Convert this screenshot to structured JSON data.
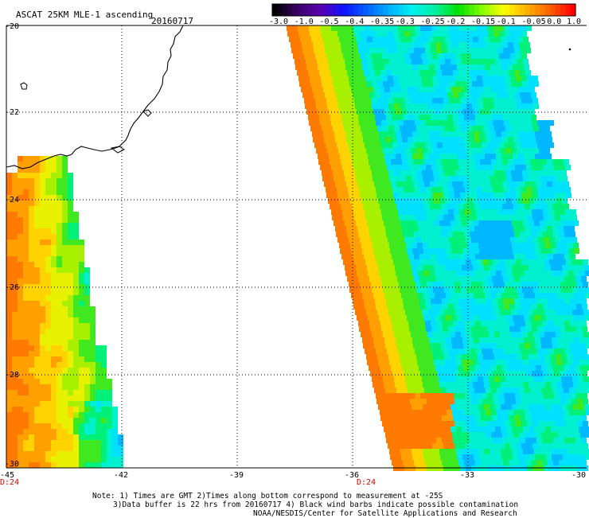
{
  "header": {
    "title": "ASCAT 25KM MLE-1 ascending",
    "date": "20160717"
  },
  "colorbar": {
    "labels": [
      "-3.0",
      "-1.0",
      "-0.5",
      "-0.4",
      "-0.35",
      "-0.3",
      "-0.25",
      "-0.2",
      "-0.15",
      "-0.1",
      "-0.05",
      "0.0",
      "1.0"
    ],
    "colors": [
      "#000000",
      "#3a0066",
      "#5a00b0",
      "#1010ff",
      "#0060ff",
      "#00b0ff",
      "#00f0f0",
      "#00f0a0",
      "#00e000",
      "#80ff00",
      "#ffff00",
      "#ffb000",
      "#ff6000",
      "#ff0000"
    ]
  },
  "axes": {
    "lon_labels": [
      "-45",
      "-42",
      "-39",
      "-36",
      "-33",
      "-30"
    ],
    "lat_labels": [
      "-20",
      "-22",
      "-24",
      "-26",
      "-28",
      "-30"
    ]
  },
  "time_labels": [
    "D:24",
    "D:24"
  ],
  "notes": [
    "Note: 1) Times are GMT 2)Times along bottom correspond to measurement at -25S",
    "3)Data buffer is 22 hrs from 20160717 4) Black wind barbs indicate possible contamination",
    "NOAA/NESDIS/Center for Satellite Applications and Research"
  ]
}
